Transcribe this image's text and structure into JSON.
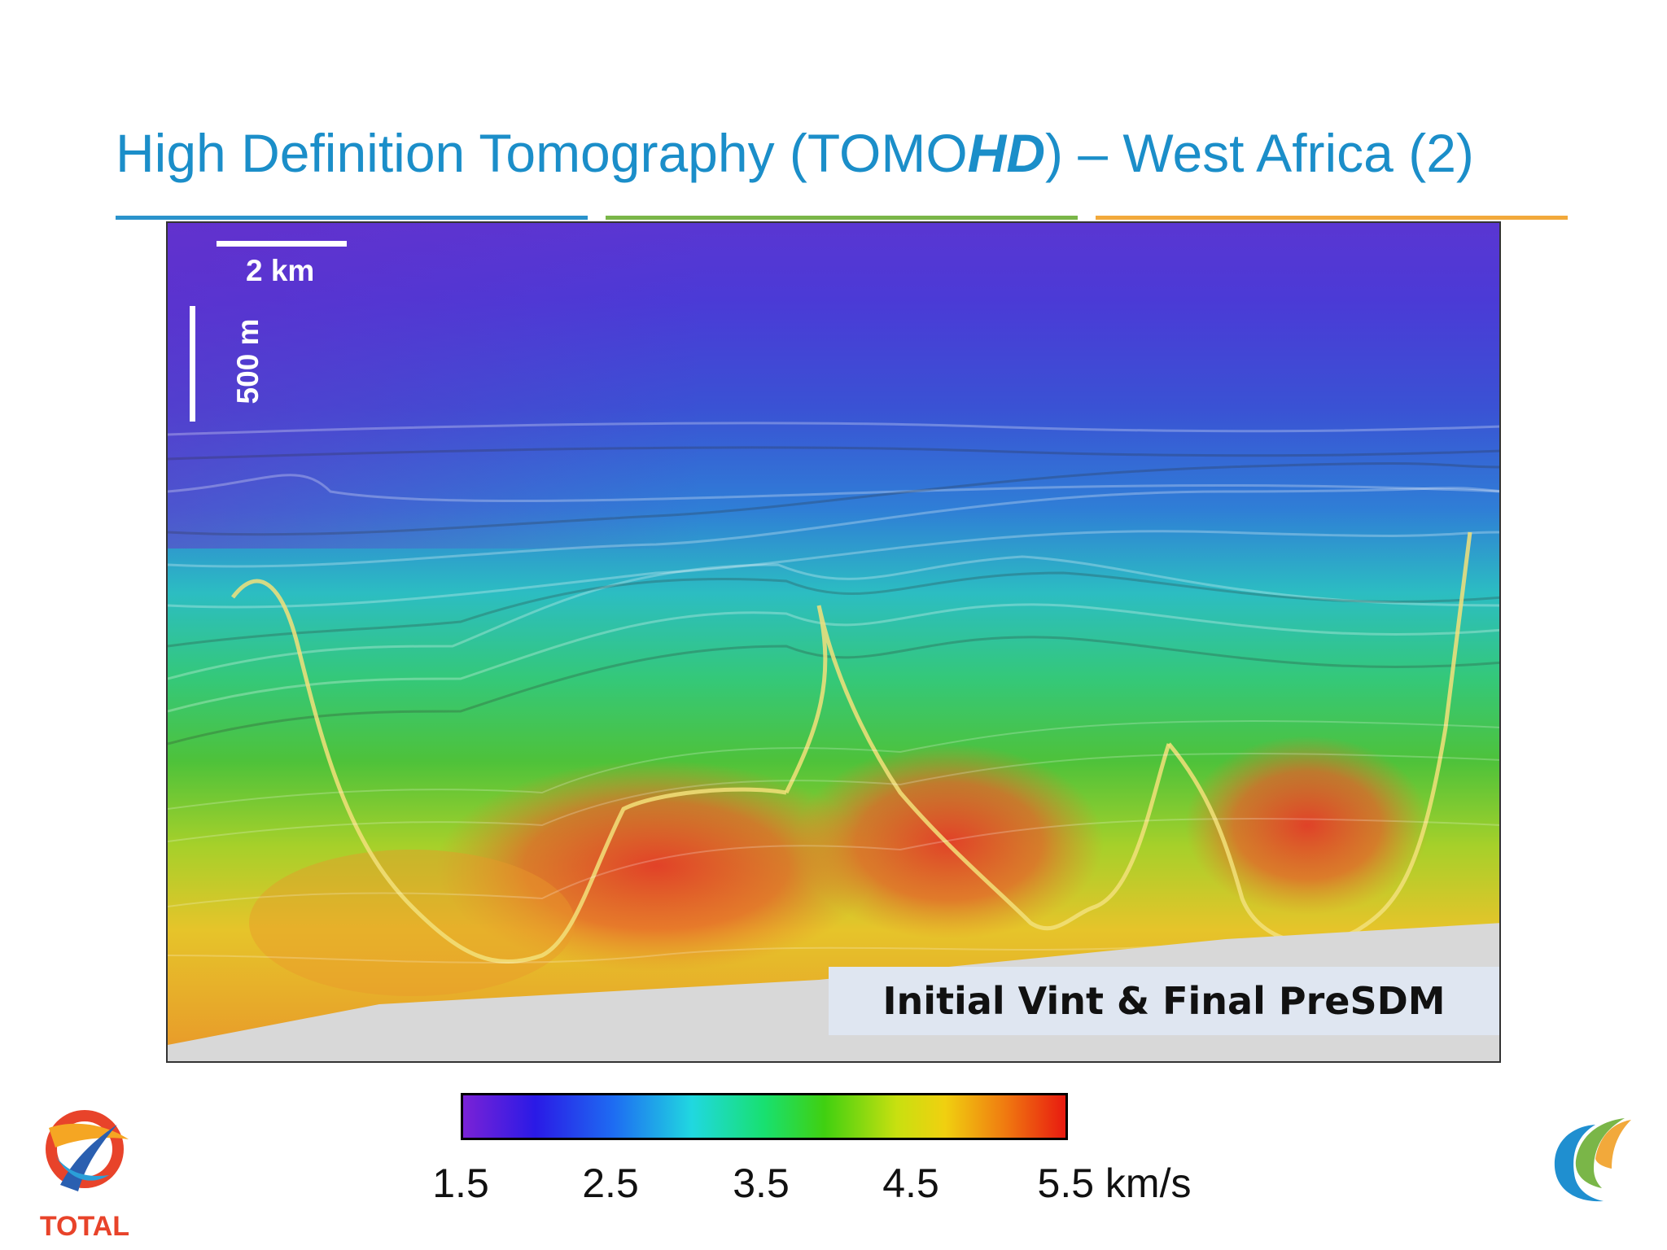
{
  "title": {
    "prefix": "High Definition Tomography (TOMO",
    "emphasis": "HD",
    "suffix": ") – West Africa (2)"
  },
  "colors": {
    "title": "#1b8ec9",
    "rule_blue": "#2a93cc",
    "rule_green": "#7ab648",
    "rule_orange": "#f2a93b"
  },
  "section": {
    "label": "Initial Vint & Final PreSDM",
    "scale_horizontal": "2 km",
    "scale_vertical": "500 m"
  },
  "colorbar": {
    "ticks": [
      "1.5",
      "2.5",
      "3.5",
      "4.5",
      "5.5 km/s"
    ],
    "colors": [
      "#7a22d6",
      "#2a1ae6",
      "#1e6cf2",
      "#20d8e0",
      "#18e070",
      "#40d010",
      "#c8e010",
      "#f0d010",
      "#f07a10",
      "#e81a10"
    ]
  },
  "logos": {
    "left": "TOTAL"
  }
}
